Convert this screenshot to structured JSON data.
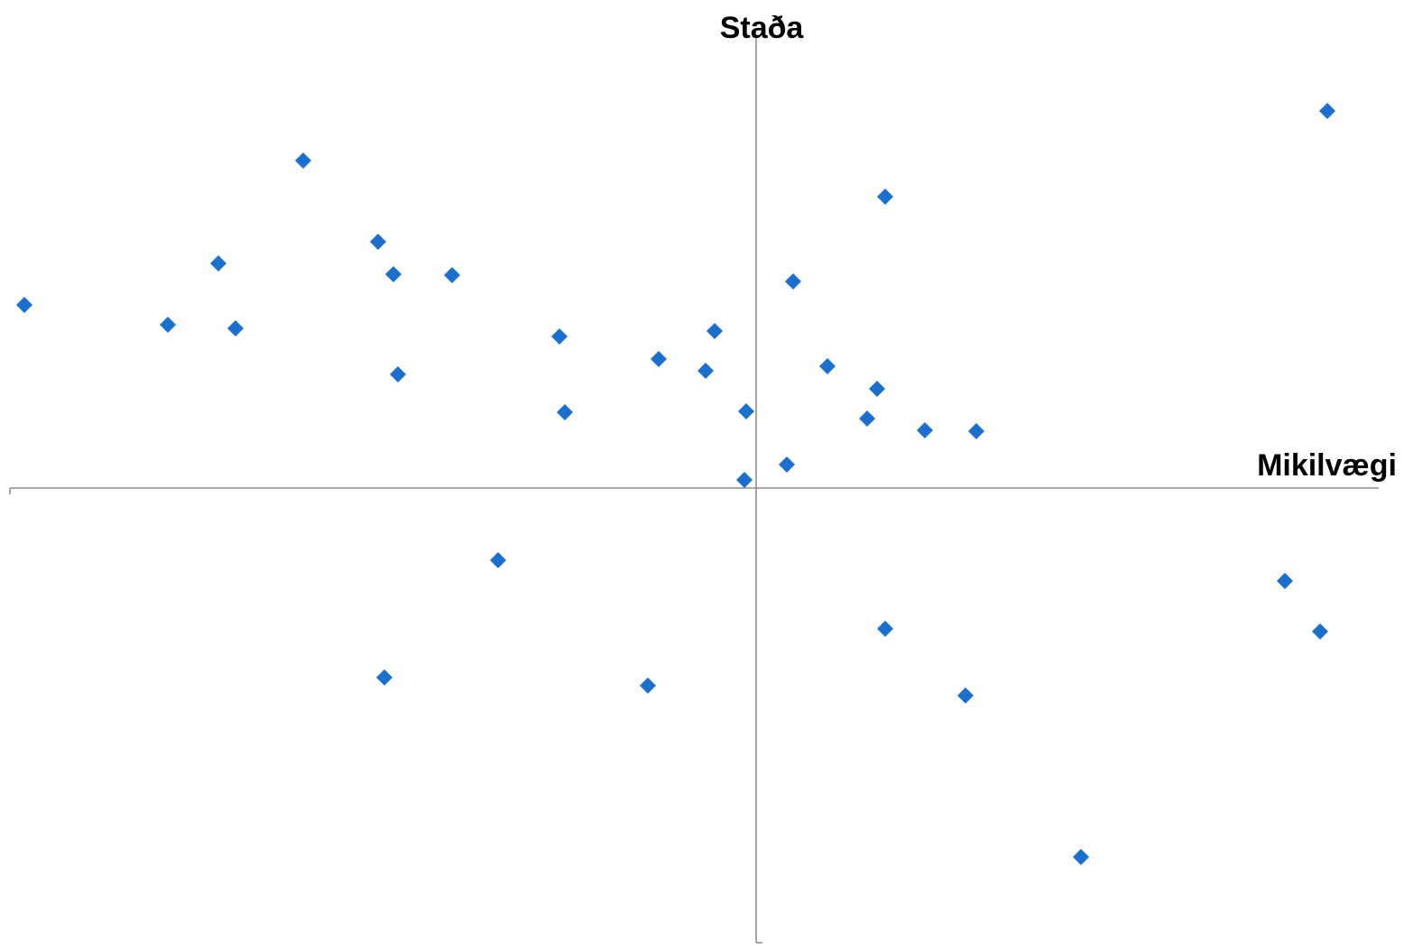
{
  "chart_data": {
    "type": "scatter",
    "x_label": "Mikilvægi",
    "y_label": "Staða",
    "color": "#1a6fcf",
    "x": [
      6.33,
      -5.02,
      1.43,
      -4.19,
      -5.96,
      -4.02,
      -3.37,
      0.41,
      -8.11,
      -6.52,
      -5.77,
      -2.18,
      -0.46,
      -1.08,
      -0.56,
      0.79,
      -3.97,
      1.34,
      -2.12,
      -0.11,
      1.23,
      1.87,
      2.44,
      0.34,
      -0.13,
      -2.86,
      5.86,
      1.43,
      6.25,
      -4.12,
      -1.2,
      2.32,
      3.6
    ],
    "y": [
      4.18,
      3.63,
      3.23,
      2.73,
      2.49,
      2.37,
      2.36,
      2.29,
      2.03,
      1.81,
      1.77,
      1.68,
      1.74,
      1.43,
      1.3,
      1.35,
      1.26,
      1.1,
      0.84,
      0.85,
      0.77,
      0.64,
      0.63,
      0.26,
      0.09,
      -0.8,
      -1.03,
      -1.56,
      -1.59,
      -2.1,
      -2.19,
      -2.3,
      -4.09
    ],
    "xlim": [
      -8.27,
      6.9
    ],
    "ylim": [
      -5.04,
      4.99
    ]
  }
}
